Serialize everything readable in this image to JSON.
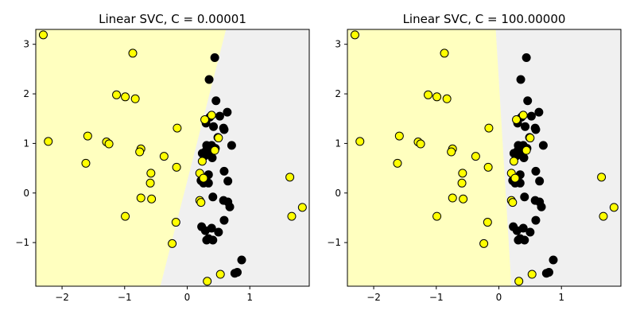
{
  "colors": {
    "region_yellow": "#ffffbf",
    "region_gray": "#f0f0f0",
    "class_black": "#000000",
    "class_yellow": "#ffff00"
  },
  "chart_data": [
    {
      "type": "scatter",
      "title": "Linear SVC, C = 0.00001",
      "xlabel": "",
      "ylabel": "",
      "xlim": [
        -2.42,
        1.95
      ],
      "ylim": [
        -1.88,
        3.3
      ],
      "xticks": [
        -2,
        -1,
        0,
        1
      ],
      "yticks": [
        -1,
        0,
        1,
        2,
        3
      ],
      "grid": false,
      "legend": "none",
      "decision_boundary": [
        [
          -0.43,
          -1.88
        ],
        [
          0.62,
          3.3
        ]
      ],
      "regions": {
        "left": "yellow",
        "right": "gray"
      },
      "series": [
        {
          "color": "black",
          "points": [
            [
              0.44,
              2.73
            ],
            [
              0.35,
              2.29
            ],
            [
              0.46,
              1.86
            ],
            [
              0.64,
              1.63
            ],
            [
              0.52,
              1.55
            ],
            [
              0.36,
              1.53
            ],
            [
              0.3,
              1.41
            ],
            [
              0.42,
              1.34
            ],
            [
              0.58,
              1.31
            ],
            [
              0.59,
              1.28
            ],
            [
              0.49,
              1.12
            ],
            [
              0.31,
              0.96
            ],
            [
              0.39,
              0.96
            ],
            [
              0.71,
              0.96
            ],
            [
              0.45,
              0.9
            ],
            [
              0.3,
              0.85
            ],
            [
              0.24,
              0.8
            ],
            [
              0.36,
              0.79
            ],
            [
              0.28,
              0.75
            ],
            [
              0.4,
              0.71
            ],
            [
              0.59,
              0.44
            ],
            [
              0.34,
              0.37
            ],
            [
              0.22,
              0.25
            ],
            [
              0.65,
              0.24
            ],
            [
              0.26,
              0.2
            ],
            [
              0.34,
              0.2
            ],
            [
              0.41,
              -0.08
            ],
            [
              0.58,
              -0.15
            ],
            [
              0.65,
              -0.18
            ],
            [
              0.68,
              -0.28
            ],
            [
              0.59,
              -0.55
            ],
            [
              0.23,
              -0.68
            ],
            [
              0.39,
              -0.71
            ],
            [
              0.29,
              -0.76
            ],
            [
              0.5,
              -0.79
            ],
            [
              0.34,
              -0.92
            ],
            [
              0.31,
              -0.95
            ],
            [
              0.41,
              -0.95
            ],
            [
              0.87,
              -1.35
            ],
            [
              0.8,
              -1.6
            ],
            [
              0.76,
              -1.62
            ]
          ]
        },
        {
          "color": "yellow",
          "points": [
            [
              -2.3,
              3.19
            ],
            [
              -0.87,
              2.82
            ],
            [
              -1.13,
              1.98
            ],
            [
              -0.99,
              1.94
            ],
            [
              -0.83,
              1.9
            ],
            [
              0.39,
              1.57
            ],
            [
              0.28,
              1.48
            ],
            [
              -0.16,
              1.31
            ],
            [
              -1.59,
              1.15
            ],
            [
              -2.22,
              1.04
            ],
            [
              -1.29,
              1.03
            ],
            [
              -1.25,
              0.99
            ],
            [
              0.5,
              1.11
            ],
            [
              -0.74,
              0.89
            ],
            [
              -0.76,
              0.83
            ],
            [
              0.44,
              0.86
            ],
            [
              -0.37,
              0.74
            ],
            [
              0.24,
              0.64
            ],
            [
              -1.62,
              0.6
            ],
            [
              -0.17,
              0.52
            ],
            [
              -0.58,
              0.4
            ],
            [
              0.2,
              0.4
            ],
            [
              0.26,
              0.3
            ],
            [
              -0.59,
              0.2
            ],
            [
              0.2,
              -0.15
            ],
            [
              0.22,
              -0.19
            ],
            [
              -0.74,
              -0.1
            ],
            [
              -0.57,
              -0.12
            ],
            [
              -0.99,
              -0.47
            ],
            [
              1.64,
              0.32
            ],
            [
              1.67,
              -0.47
            ],
            [
              1.84,
              -0.29
            ],
            [
              -0.18,
              -0.59
            ],
            [
              -0.24,
              -1.02
            ],
            [
              0.32,
              -1.78
            ],
            [
              0.53,
              -1.64
            ]
          ]
        }
      ]
    },
    {
      "type": "scatter",
      "title": "Linear SVC, C = 100.00000",
      "xlabel": "",
      "ylabel": "",
      "xlim": [
        -2.42,
        1.95
      ],
      "ylim": [
        -1.88,
        3.3
      ],
      "xticks": [
        -2,
        -1,
        0,
        1
      ],
      "yticks": [
        -1,
        0,
        1,
        2,
        3
      ],
      "grid": false,
      "legend": "none",
      "decision_boundary": [
        [
          0.2,
          -1.88
        ],
        [
          -0.05,
          3.3
        ]
      ],
      "regions": {
        "left": "yellow",
        "right": "gray"
      },
      "series": [
        {
          "color": "black",
          "points": [
            [
              0.44,
              2.73
            ],
            [
              0.35,
              2.29
            ],
            [
              0.46,
              1.86
            ],
            [
              0.64,
              1.63
            ],
            [
              0.52,
              1.55
            ],
            [
              0.36,
              1.53
            ],
            [
              0.3,
              1.41
            ],
            [
              0.42,
              1.34
            ],
            [
              0.58,
              1.31
            ],
            [
              0.59,
              1.28
            ],
            [
              0.49,
              1.12
            ],
            [
              0.31,
              0.96
            ],
            [
              0.39,
              0.96
            ],
            [
              0.71,
              0.96
            ],
            [
              0.45,
              0.9
            ],
            [
              0.3,
              0.85
            ],
            [
              0.24,
              0.8
            ],
            [
              0.36,
              0.79
            ],
            [
              0.28,
              0.75
            ],
            [
              0.4,
              0.71
            ],
            [
              0.59,
              0.44
            ],
            [
              0.34,
              0.37
            ],
            [
              0.22,
              0.25
            ],
            [
              0.65,
              0.24
            ],
            [
              0.26,
              0.2
            ],
            [
              0.34,
              0.2
            ],
            [
              0.41,
              -0.08
            ],
            [
              0.58,
              -0.15
            ],
            [
              0.65,
              -0.18
            ],
            [
              0.68,
              -0.28
            ],
            [
              0.59,
              -0.55
            ],
            [
              0.23,
              -0.68
            ],
            [
              0.39,
              -0.71
            ],
            [
              0.29,
              -0.76
            ],
            [
              0.5,
              -0.79
            ],
            [
              0.34,
              -0.92
            ],
            [
              0.31,
              -0.95
            ],
            [
              0.41,
              -0.95
            ],
            [
              0.87,
              -1.35
            ],
            [
              0.8,
              -1.6
            ],
            [
              0.76,
              -1.62
            ]
          ]
        },
        {
          "color": "yellow",
          "points": [
            [
              -2.3,
              3.19
            ],
            [
              -0.87,
              2.82
            ],
            [
              -1.13,
              1.98
            ],
            [
              -0.99,
              1.94
            ],
            [
              -0.83,
              1.9
            ],
            [
              0.39,
              1.57
            ],
            [
              0.28,
              1.48
            ],
            [
              -0.16,
              1.31
            ],
            [
              -1.59,
              1.15
            ],
            [
              -2.22,
              1.04
            ],
            [
              -1.29,
              1.03
            ],
            [
              -1.25,
              0.99
            ],
            [
              0.5,
              1.11
            ],
            [
              -0.74,
              0.89
            ],
            [
              -0.76,
              0.83
            ],
            [
              0.44,
              0.86
            ],
            [
              -0.37,
              0.74
            ],
            [
              0.24,
              0.64
            ],
            [
              -1.62,
              0.6
            ],
            [
              -0.17,
              0.52
            ],
            [
              -0.58,
              0.4
            ],
            [
              0.2,
              0.4
            ],
            [
              0.26,
              0.3
            ],
            [
              -0.59,
              0.2
            ],
            [
              0.2,
              -0.15
            ],
            [
              0.22,
              -0.19
            ],
            [
              -0.74,
              -0.1
            ],
            [
              -0.57,
              -0.12
            ],
            [
              -0.99,
              -0.47
            ],
            [
              1.64,
              0.32
            ],
            [
              1.67,
              -0.47
            ],
            [
              1.84,
              -0.29
            ],
            [
              -0.18,
              -0.59
            ],
            [
              -0.24,
              -1.02
            ],
            [
              0.32,
              -1.78
            ],
            [
              0.53,
              -1.64
            ]
          ]
        }
      ]
    }
  ]
}
